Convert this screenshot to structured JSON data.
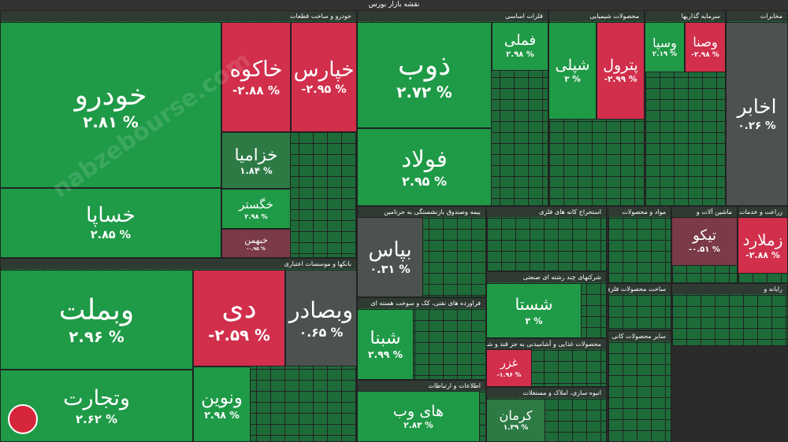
{
  "chart_data": {
    "type": "treemap",
    "title": "نقشه بازار بورس",
    "watermark": "nabzebourse.com",
    "sectors": [
      {
        "name": "خودرو و ساخت قطعات",
        "tiles": [
          "خودرو",
          "خاکوه",
          "خپارس",
          "خساپا",
          "خزامیا",
          "خگستر",
          "خبهمن"
        ],
        "values": [
          2.81,
          -2.88,
          -2.95,
          2.85,
          1.84,
          2.98,
          -0.95
        ],
        "value_labels": [
          "۲.۸۱ %",
          "-۲.۸۸ %",
          "-۲.۹۵ %",
          "۲.۸۵ %",
          "۱.۸۴ %",
          "۲.۹۸ %",
          "-۰.۹۵ %"
        ]
      },
      {
        "name": "بانکها و موسسات اعتباری",
        "tiles": [
          "وبملت",
          "دی",
          "وبصادر",
          "وتجارت",
          "ونوین"
        ],
        "values": [
          2.96,
          -2.59,
          0.65,
          2.62,
          2.98
        ],
        "value_labels": [
          "۲.۹۶ %",
          "-۲.۵۹ %",
          "۰.۶۵ %",
          "۲.۶۲ %",
          "۲.۹۸ %"
        ]
      },
      {
        "name": "فلزات اساسی",
        "tiles": [
          "ذوب",
          "فولاد",
          "فملی"
        ],
        "values": [
          2.72,
          2.95,
          2.98
        ],
        "value_labels": [
          "۲.۷۲ %",
          "۲.۹۵ %",
          "۲.۹۸ %"
        ]
      },
      {
        "name": "بیمه وصندوق بازنشستگی به جزتامین",
        "tiles": [
          "بپاس"
        ],
        "values": [
          0.31
        ],
        "value_labels": [
          "۰.۳۱ %"
        ]
      },
      {
        "name": "استخراج کانه های فلزی",
        "tiles": [],
        "values": [],
        "value_labels": []
      },
      {
        "name": "شرکتهای چند رشته ای صنعتی",
        "tiles": [
          "شستا"
        ],
        "values": [
          3
        ],
        "value_labels": [
          "۳ %"
        ]
      },
      {
        "name": "فراورده های نفتی، کک و سوخت هسته ای",
        "tiles": [
          "شبنا"
        ],
        "values": [
          2.99
        ],
        "value_labels": [
          "۲.۹۹ %"
        ]
      },
      {
        "name": "اطلاعات و ارتباطات",
        "tiles": [
          "های وب"
        ],
        "values": [
          2.83
        ],
        "value_labels": [
          "۲.۸۳ %"
        ]
      },
      {
        "name": "محصولات غذایی و آشامیدنی به جز قند و شکر",
        "tiles": [
          "غزر"
        ],
        "values": [
          -1.96
        ],
        "value_labels": [
          "-۱.۹۶ %"
        ]
      },
      {
        "name": "انبوه سازی، املاک و مستغلات",
        "tiles": [
          "کرمان"
        ],
        "values": [
          1.39
        ],
        "value_labels": [
          "۱.۳۹ %"
        ]
      },
      {
        "name": "محصولات شیمیایی",
        "tiles": [
          "شپلی",
          "پترول"
        ],
        "values": [
          3,
          -2.99
        ],
        "value_labels": [
          "۳ %",
          "-۲.۹۹ %"
        ]
      },
      {
        "name": "سرمایه گذاریها",
        "tiles": [
          "وسپا",
          "وصنا"
        ],
        "values": [
          2.19,
          -2.98
        ],
        "value_labels": [
          "۲.۱۹ %",
          "-۲.۹۸ %"
        ]
      },
      {
        "name": "مخابرات",
        "tiles": [
          "اخابر"
        ],
        "values": [
          0.26
        ],
        "value_labels": [
          "۰.۲۶ %"
        ]
      },
      {
        "name": "مواد و محصولات",
        "tiles": [],
        "values": [],
        "value_labels": []
      },
      {
        "name": "ماشین آلات و",
        "tiles": [
          "تیکو"
        ],
        "values": [
          -0.51
        ],
        "value_labels": [
          "-۰.۵۱ %"
        ]
      },
      {
        "name": "زراعت و خدمات",
        "tiles": [
          "زملارد"
        ],
        "values": [
          -2.88
        ],
        "value_labels": [
          "-۲.۸۸ %"
        ]
      },
      {
        "name": "ساخت محصولات فلزی",
        "tiles": [],
        "values": [],
        "value_labels": []
      },
      {
        "name": "سایر محصولات کانی",
        "tiles": [],
        "values": [],
        "value_labels": []
      },
      {
        "name": "رایانه و",
        "tiles": [],
        "values": [],
        "value_labels": []
      }
    ]
  }
}
